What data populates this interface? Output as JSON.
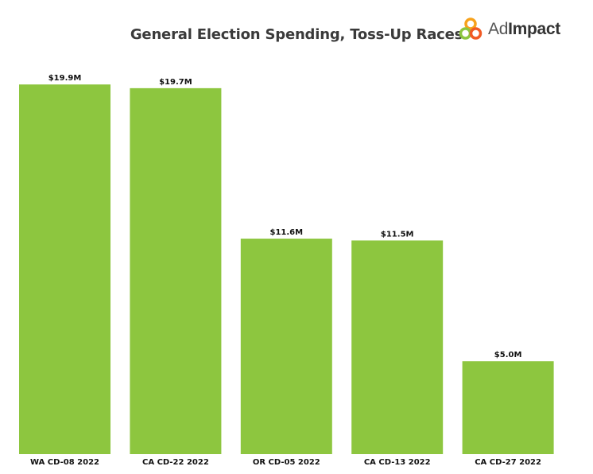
{
  "chart_data": {
    "type": "bar",
    "title": "General Election Spending, Toss-Up Races",
    "categories": [
      "WA CD-08 2022",
      "CA CD-22 2022",
      "OR CD-05 2022",
      "CA CD-13 2022",
      "CA CD-27 2022"
    ],
    "values": [
      19.9,
      19.7,
      11.6,
      11.5,
      5.0
    ],
    "value_labels": [
      "$19.9M",
      "$19.7M",
      "$11.6M",
      "$11.5M",
      "$5.0M"
    ],
    "xlabel": "",
    "ylabel": "",
    "ylim": [
      0,
      20.08
    ],
    "grid": false,
    "legend": "none",
    "colors": {
      "bar": "#8dc63f",
      "title": "#3a3a3a",
      "labels": "#111111"
    }
  },
  "logo": {
    "text_regular": "Ad",
    "text_bold": "Impact",
    "colors": [
      "#f7a21b",
      "#8dc63f",
      "#f15a24"
    ]
  }
}
